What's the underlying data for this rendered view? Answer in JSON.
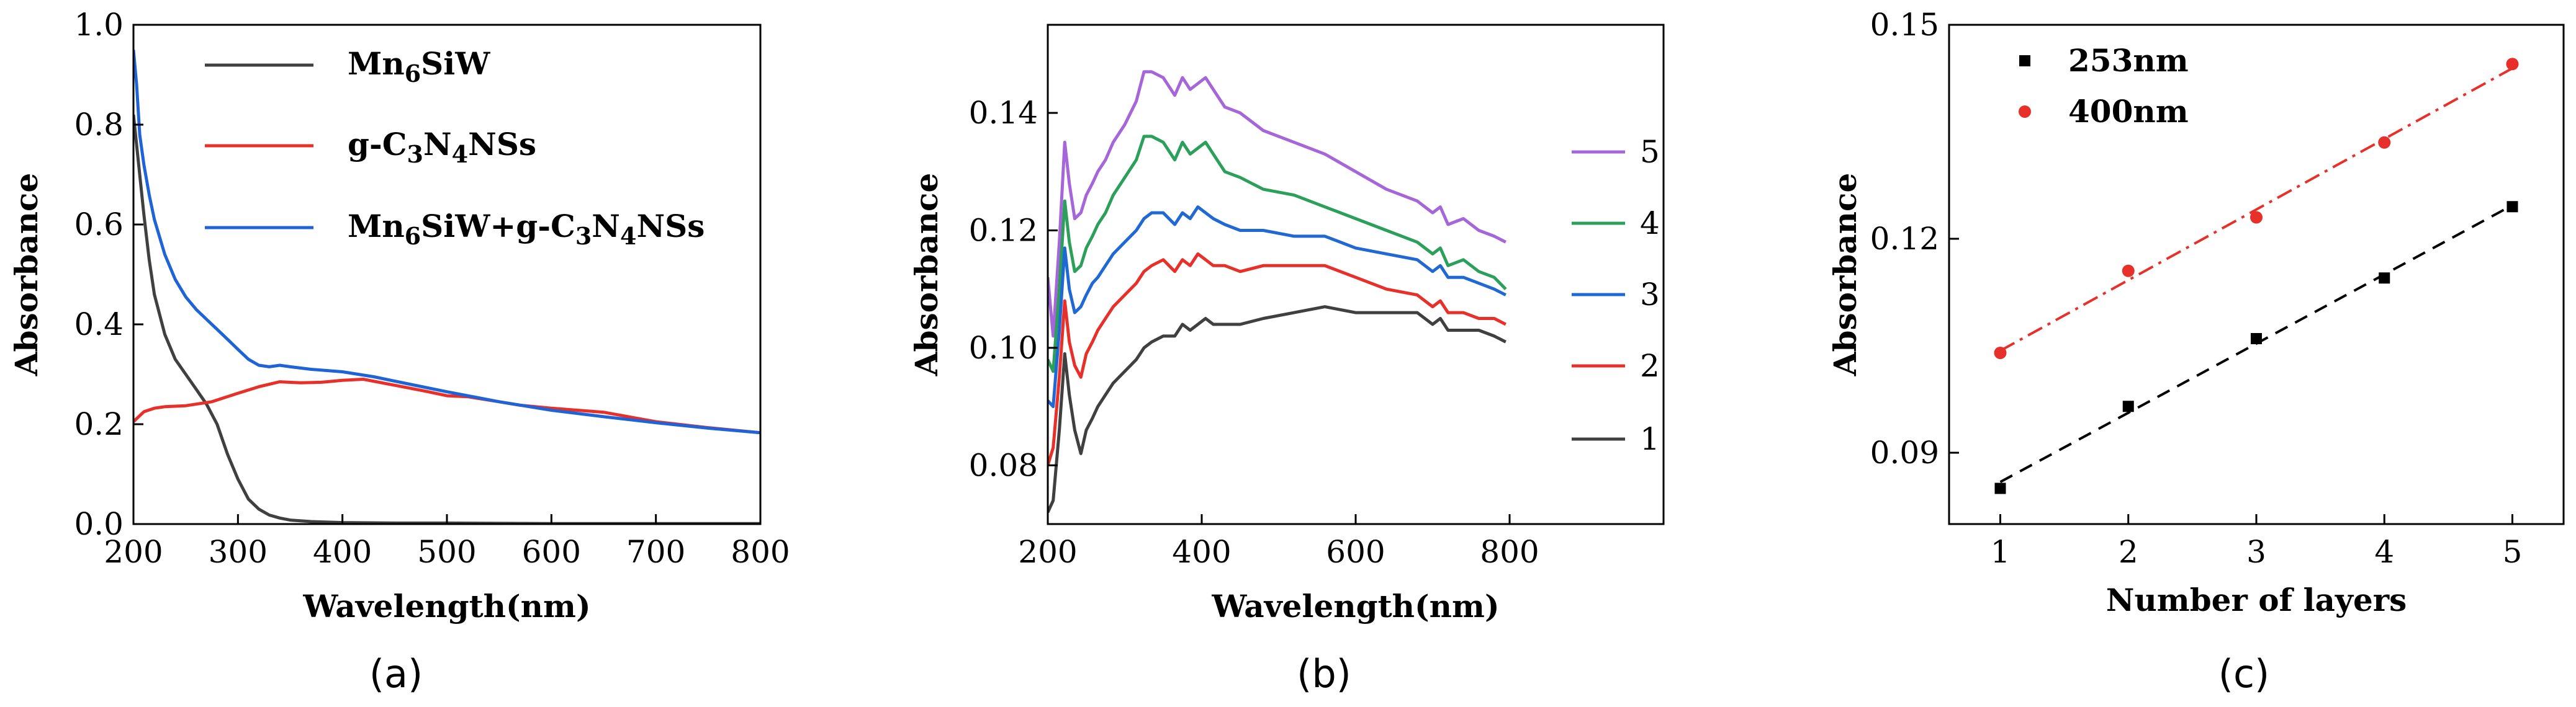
{
  "chart_data": [
    {
      "panel": "a",
      "label": "(a)",
      "type": "line",
      "xlabel": "Wavelength(nm)",
      "ylabel": "Absorbance",
      "xlim": [
        200,
        800
      ],
      "ylim": [
        0,
        1.0
      ],
      "xticks": [
        200,
        300,
        400,
        500,
        600,
        700,
        800
      ],
      "yticks": [
        0.0,
        0.2,
        0.4,
        0.6,
        0.8,
        1.0
      ],
      "ytick_labels": [
        "0.0",
        "0.2",
        "0.4",
        "0.6",
        "0.8",
        "1.0"
      ],
      "legend_position": "top-right",
      "series": [
        {
          "name": "Mn6SiW",
          "legend_parts": [
            [
              "Mn",
              ""
            ],
            [
              "6",
              "sub"
            ],
            [
              "SiW",
              ""
            ]
          ],
          "color": "#404040",
          "x": [
            200,
            205,
            210,
            215,
            220,
            230,
            240,
            250,
            260,
            270,
            280,
            290,
            300,
            310,
            320,
            330,
            340,
            350,
            370,
            400,
            450,
            500,
            600,
            700,
            800
          ],
          "y": [
            0.82,
            0.72,
            0.62,
            0.53,
            0.46,
            0.38,
            0.33,
            0.3,
            0.27,
            0.24,
            0.2,
            0.14,
            0.09,
            0.05,
            0.03,
            0.018,
            0.012,
            0.008,
            0.005,
            0.003,
            0.002,
            0.002,
            0.001,
            0.001,
            0.001
          ]
        },
        {
          "name": "g-C3N4NSs",
          "legend_parts": [
            [
              "g-C",
              ""
            ],
            [
              "3",
              "sub"
            ],
            [
              "N",
              ""
            ],
            [
              "4",
              "sub"
            ],
            [
              "NSs",
              ""
            ]
          ],
          "color": "#e8302a",
          "x": [
            200,
            210,
            220,
            230,
            250,
            275,
            300,
            320,
            340,
            360,
            380,
            400,
            420,
            450,
            480,
            500,
            520,
            550,
            570,
            600,
            650,
            700,
            750,
            800
          ],
          "y": [
            0.205,
            0.225,
            0.232,
            0.235,
            0.237,
            0.245,
            0.262,
            0.275,
            0.285,
            0.283,
            0.284,
            0.288,
            0.29,
            0.278,
            0.266,
            0.257,
            0.255,
            0.245,
            0.238,
            0.232,
            0.224,
            0.205,
            0.193,
            0.183
          ]
        },
        {
          "name": "Mn6SiW+g-C3N4NSs",
          "legend_parts": [
            [
              "Mn",
              ""
            ],
            [
              "6",
              "sub"
            ],
            [
              "SiW+g-C",
              ""
            ],
            [
              "3",
              "sub"
            ],
            [
              "N",
              ""
            ],
            [
              "4",
              "sub"
            ],
            [
              "NSs",
              ""
            ]
          ],
          "color": "#1f64d6",
          "x": [
            200,
            203,
            206,
            210,
            215,
            220,
            230,
            240,
            250,
            260,
            270,
            280,
            290,
            300,
            310,
            320,
            330,
            340,
            350,
            370,
            400,
            430,
            460,
            500,
            550,
            600,
            650,
            700,
            750,
            800
          ],
          "y": [
            0.95,
            0.88,
            0.78,
            0.72,
            0.66,
            0.61,
            0.54,
            0.49,
            0.455,
            0.43,
            0.41,
            0.39,
            0.37,
            0.35,
            0.33,
            0.318,
            0.315,
            0.318,
            0.315,
            0.31,
            0.305,
            0.295,
            0.282,
            0.265,
            0.245,
            0.228,
            0.215,
            0.203,
            0.192,
            0.183
          ]
        }
      ]
    },
    {
      "panel": "b",
      "label": "(b)",
      "type": "line",
      "xlabel": "Wavelength(nm)",
      "ylabel": "Absorbance",
      "xlim": [
        200,
        1000
      ],
      "ylim": [
        0.07,
        0.155
      ],
      "xticks": [
        200,
        400,
        600,
        800
      ],
      "yticks": [
        0.08,
        0.1,
        0.12,
        0.14
      ],
      "ytick_labels": [
        "0.08",
        "0.10",
        "0.12",
        "0.14"
      ],
      "legend_position": "right",
      "series": [
        {
          "name": "5",
          "color": "#a566d9",
          "x": [
            200,
            207,
            215,
            222,
            228,
            235,
            243,
            250,
            258,
            265,
            275,
            285,
            300,
            315,
            325,
            335,
            350,
            365,
            375,
            385,
            395,
            405,
            415,
            430,
            450,
            480,
            520,
            560,
            600,
            640,
            680,
            700,
            710,
            720,
            740,
            760,
            780,
            795
          ],
          "y": [
            0.112,
            0.102,
            0.118,
            0.135,
            0.128,
            0.122,
            0.123,
            0.126,
            0.128,
            0.13,
            0.132,
            0.135,
            0.138,
            0.142,
            0.147,
            0.147,
            0.146,
            0.143,
            0.146,
            0.144,
            0.145,
            0.146,
            0.144,
            0.141,
            0.14,
            0.137,
            0.135,
            0.133,
            0.13,
            0.127,
            0.125,
            0.123,
            0.124,
            0.121,
            0.122,
            0.12,
            0.119,
            0.118
          ]
        },
        {
          "name": "4",
          "color": "#2ca05a",
          "x": [
            200,
            207,
            215,
            222,
            228,
            235,
            243,
            250,
            258,
            265,
            275,
            285,
            300,
            315,
            325,
            335,
            350,
            365,
            375,
            385,
            395,
            405,
            415,
            430,
            450,
            480,
            520,
            560,
            600,
            640,
            680,
            700,
            710,
            720,
            740,
            760,
            780,
            795
          ],
          "y": [
            0.098,
            0.096,
            0.11,
            0.125,
            0.118,
            0.113,
            0.114,
            0.117,
            0.119,
            0.121,
            0.123,
            0.126,
            0.129,
            0.132,
            0.136,
            0.136,
            0.135,
            0.132,
            0.135,
            0.133,
            0.134,
            0.135,
            0.133,
            0.13,
            0.129,
            0.127,
            0.126,
            0.124,
            0.122,
            0.12,
            0.118,
            0.116,
            0.117,
            0.114,
            0.115,
            0.113,
            0.112,
            0.11
          ]
        },
        {
          "name": "3",
          "color": "#2068d3",
          "x": [
            200,
            207,
            215,
            222,
            228,
            235,
            243,
            250,
            258,
            265,
            275,
            285,
            300,
            315,
            325,
            335,
            350,
            365,
            375,
            385,
            395,
            405,
            415,
            430,
            450,
            480,
            520,
            560,
            600,
            640,
            680,
            700,
            710,
            720,
            740,
            760,
            780,
            795
          ],
          "y": [
            0.091,
            0.09,
            0.103,
            0.117,
            0.11,
            0.106,
            0.107,
            0.109,
            0.111,
            0.112,
            0.114,
            0.116,
            0.118,
            0.12,
            0.122,
            0.123,
            0.123,
            0.121,
            0.123,
            0.122,
            0.124,
            0.123,
            0.122,
            0.121,
            0.12,
            0.12,
            0.119,
            0.119,
            0.117,
            0.116,
            0.115,
            0.113,
            0.114,
            0.112,
            0.112,
            0.111,
            0.11,
            0.109
          ]
        },
        {
          "name": "2",
          "color": "#e8302a",
          "x": [
            200,
            207,
            215,
            222,
            228,
            235,
            243,
            250,
            258,
            265,
            275,
            285,
            300,
            315,
            325,
            335,
            350,
            365,
            375,
            385,
            395,
            405,
            415,
            430,
            450,
            480,
            520,
            560,
            600,
            640,
            680,
            700,
            710,
            720,
            740,
            760,
            780,
            795
          ],
          "y": [
            0.08,
            0.083,
            0.095,
            0.108,
            0.101,
            0.097,
            0.095,
            0.099,
            0.101,
            0.103,
            0.105,
            0.107,
            0.109,
            0.111,
            0.113,
            0.114,
            0.115,
            0.113,
            0.115,
            0.114,
            0.116,
            0.115,
            0.114,
            0.114,
            0.113,
            0.114,
            0.114,
            0.114,
            0.112,
            0.11,
            0.109,
            0.107,
            0.108,
            0.106,
            0.106,
            0.105,
            0.105,
            0.104
          ]
        },
        {
          "name": "1",
          "color": "#404040",
          "x": [
            200,
            207,
            215,
            222,
            228,
            235,
            243,
            250,
            258,
            265,
            275,
            285,
            300,
            315,
            325,
            335,
            350,
            365,
            375,
            385,
            395,
            405,
            415,
            430,
            450,
            480,
            520,
            560,
            600,
            640,
            680,
            700,
            710,
            720,
            740,
            760,
            780,
            795
          ],
          "y": [
            0.072,
            0.074,
            0.086,
            0.099,
            0.092,
            0.086,
            0.082,
            0.086,
            0.088,
            0.09,
            0.092,
            0.094,
            0.096,
            0.098,
            0.1,
            0.101,
            0.102,
            0.102,
            0.104,
            0.103,
            0.104,
            0.105,
            0.104,
            0.104,
            0.104,
            0.105,
            0.106,
            0.107,
            0.106,
            0.106,
            0.106,
            0.104,
            0.105,
            0.103,
            0.103,
            0.103,
            0.102,
            0.101
          ]
        }
      ]
    },
    {
      "panel": "c",
      "label": "(c)",
      "type": "scatter",
      "xlabel": "Number of layers",
      "ylabel": "Absorbance",
      "xlim": [
        0.6,
        5.4
      ],
      "ylim": [
        0.08,
        0.15
      ],
      "xticks": [
        1,
        2,
        3,
        4,
        5
      ],
      "yticks": [
        0.09,
        0.12,
        0.15
      ],
      "ytick_labels": [
        "0.09",
        "0.12",
        "0.15"
      ],
      "legend_position": "top-left",
      "series": [
        {
          "name": "253nm",
          "marker": "square",
          "color": "#000000",
          "fit": "linear",
          "fit_style": "dashed",
          "x": [
            1,
            2,
            3,
            4,
            5
          ],
          "y": [
            0.085,
            0.0965,
            0.106,
            0.1145,
            0.1245
          ]
        },
        {
          "name": "400nm",
          "marker": "circle",
          "color": "#e8302a",
          "fit": "linear",
          "fit_style": "dash-dot",
          "x": [
            1,
            2,
            3,
            4,
            5
          ],
          "y": [
            0.104,
            0.1155,
            0.123,
            0.1335,
            0.1445
          ]
        }
      ]
    }
  ]
}
